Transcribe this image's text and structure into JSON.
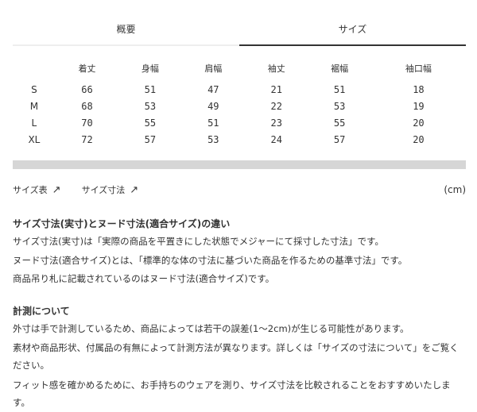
{
  "tabs": [
    {
      "label": "概要",
      "active": false
    },
    {
      "label": "サイズ",
      "active": true
    }
  ],
  "size_table": {
    "headers": [
      "",
      "着丈",
      "身幅",
      "肩幅",
      "袖丈",
      "裾幅",
      "袖口幅"
    ],
    "rows": [
      [
        "S",
        "66",
        "51",
        "47",
        "21",
        "51",
        "18"
      ],
      [
        "M",
        "68",
        "53",
        "49",
        "22",
        "53",
        "19"
      ],
      [
        "L",
        "70",
        "55",
        "51",
        "23",
        "55",
        "20"
      ],
      [
        "XL",
        "72",
        "57",
        "53",
        "24",
        "57",
        "20"
      ]
    ]
  },
  "links": {
    "size_chart": "サイズ表",
    "size_dimensions": "サイズ寸法",
    "arrow_icon": "north-east-arrow",
    "unit": "(cm)"
  },
  "section1": {
    "title": "サイズ寸法(実寸)とヌード寸法(適合サイズ)の違い",
    "lines": [
      "サイズ寸法(実寸)は「実際の商品を平置きにした状態でメジャーにて採寸した寸法」です。",
      "ヌード寸法(適合サイズ)とは、「標準的な体の寸法に基づいた商品を作るための基準寸法」です。",
      "商品吊り札に記載されているのはヌード寸法(適合サイズ)です。"
    ]
  },
  "section2": {
    "title": "計測について",
    "lines": [
      "外寸は手で計測しているため、商品によっては若干の誤差(1～2cm)が生じる可能性があります。",
      "素材や商品形状、付属品の有無によって計測方法が異なります。詳しくは「サイズの寸法について」をご覧ください。",
      "フィット感を確かめるために、お手持ちのウェアを測り、サイズ寸法を比較されることをおすすめいたします。"
    ]
  }
}
